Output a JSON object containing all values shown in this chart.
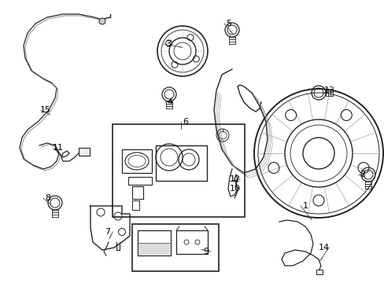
{
  "bg_color": "#ffffff",
  "line_color": "#222222",
  "label_color": "#000000",
  "figsize": [
    4.89,
    3.6
  ],
  "dpi": 100,
  "xlim": [
    0,
    489
  ],
  "ylim": [
    0,
    360
  ]
}
